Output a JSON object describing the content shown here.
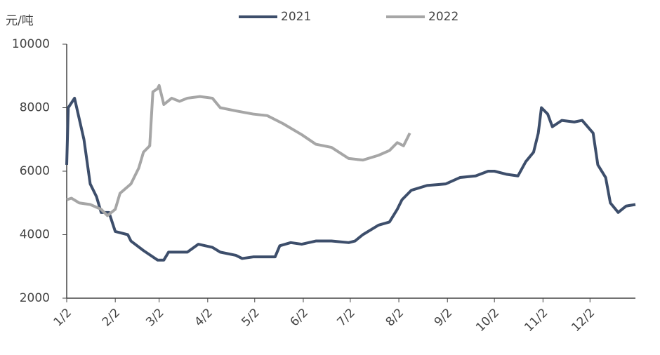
{
  "chart_data": {
    "type": "line",
    "y_label": "元/吨",
    "xlim": [
      "1/2",
      "12/31"
    ],
    "xticks": [
      "1/2",
      "2/2",
      "3/2",
      "4/2",
      "5/2",
      "6/2",
      "7/2",
      "8/2",
      "9/2",
      "10/2",
      "11/2",
      "12/2"
    ],
    "ylim": [
      2000,
      10000
    ],
    "yticks": [
      2000,
      4000,
      6000,
      8000,
      10000
    ],
    "series": [
      {
        "name": "2021",
        "color": "#3d4e6b",
        "x": [
          "1/2",
          "1/3",
          "1/7",
          "1/13",
          "1/17",
          "1/21",
          "1/24",
          "1/29",
          "2/2",
          "2/10",
          "2/12",
          "2/20",
          "3/1",
          "3/5",
          "3/8",
          "3/20",
          "3/27",
          "4/5",
          "4/10",
          "4/20",
          "4/24",
          "5/1",
          "5/15",
          "5/18",
          "5/25",
          "6/1",
          "6/10",
          "6/20",
          "7/1",
          "7/5",
          "7/10",
          "7/20",
          "7/27",
          "8/1",
          "8/4",
          "8/10",
          "8/20",
          "9/1",
          "9/10",
          "9/20",
          "9/28",
          "10/2",
          "10/10",
          "10/17",
          "10/22",
          "10/27",
          "10/30",
          "11/1",
          "11/5",
          "11/8",
          "11/14",
          "11/22",
          "11/27",
          "12/4",
          "12/7",
          "12/12",
          "12/15",
          "12/20",
          "12/25",
          "12/31"
        ],
        "values": [
          6200,
          8000,
          8300,
          7000,
          5600,
          5200,
          4700,
          4700,
          4100,
          4000,
          3800,
          3500,
          3200,
          3200,
          3450,
          3450,
          3700,
          3600,
          3450,
          3350,
          3250,
          3300,
          3300,
          3650,
          3750,
          3700,
          3800,
          3800,
          3750,
          3800,
          4000,
          4300,
          4400,
          4800,
          5100,
          5400,
          5550,
          5600,
          5800,
          5850,
          6000,
          6000,
          5900,
          5850,
          6300,
          6600,
          7200,
          8000,
          7800,
          7400,
          7600,
          7550,
          7600,
          7200,
          6200,
          5800,
          5000,
          4700,
          4900,
          4950
        ]
      },
      {
        "name": "2022",
        "color": "#a6a6a6",
        "x": [
          "1/2",
          "1/5",
          "1/10",
          "1/17",
          "1/24",
          "1/28",
          "2/2",
          "2/5",
          "2/12",
          "2/17",
          "2/20",
          "2/24",
          "2/26",
          "3/1",
          "3/2",
          "3/5",
          "3/10",
          "3/15",
          "3/20",
          "3/28",
          "4/5",
          "4/10",
          "4/20",
          "5/1",
          "5/10",
          "5/20",
          "6/1",
          "6/10",
          "6/20",
          "7/1",
          "7/10",
          "7/20",
          "7/27",
          "8/1",
          "8/5",
          "8/9"
        ],
        "values": [
          5100,
          5150,
          5000,
          4950,
          4800,
          4600,
          4800,
          5300,
          5600,
          6100,
          6600,
          6800,
          8500,
          8600,
          8700,
          8100,
          8300,
          8200,
          8300,
          8350,
          8300,
          8000,
          7900,
          7800,
          7750,
          7500,
          7150,
          6850,
          6750,
          6400,
          6350,
          6500,
          6650,
          6900,
          6800,
          7200
        ]
      }
    ]
  }
}
